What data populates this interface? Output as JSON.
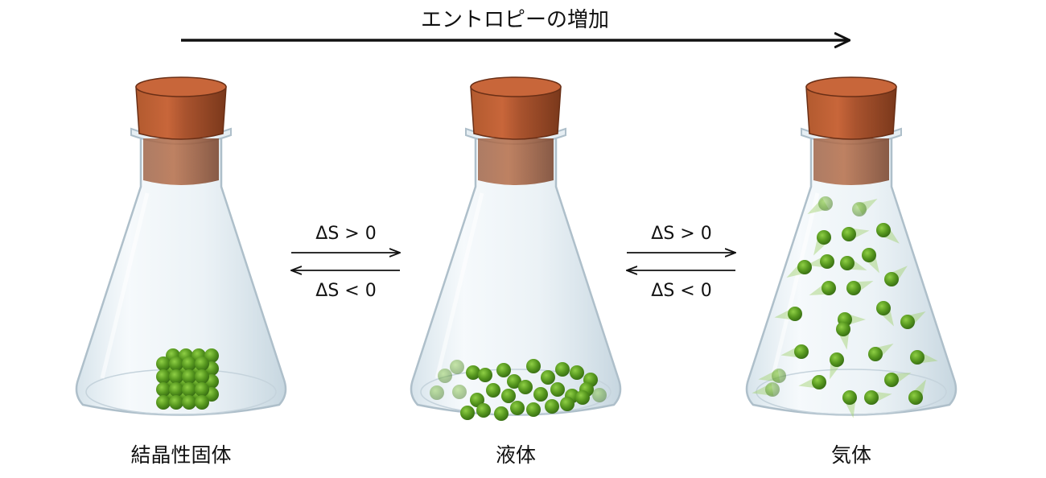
{
  "title": "エントロピーの増加",
  "transitions": {
    "forward": "ΔS > 0",
    "reverse": "ΔS < 0"
  },
  "flasks": [
    {
      "label": "結晶性固体",
      "state": "solid"
    },
    {
      "label": "液体",
      "state": "liquid"
    },
    {
      "label": "気体",
      "state": "gas"
    }
  ],
  "colors": {
    "cork_light": "#c8663a",
    "cork_mid": "#a9532e",
    "cork_dark": "#7e3a1d",
    "particle": "#4e8c1e",
    "particle_light": "#7fbf3a",
    "glass": "#dbe8f0",
    "arrow": "#111111"
  }
}
